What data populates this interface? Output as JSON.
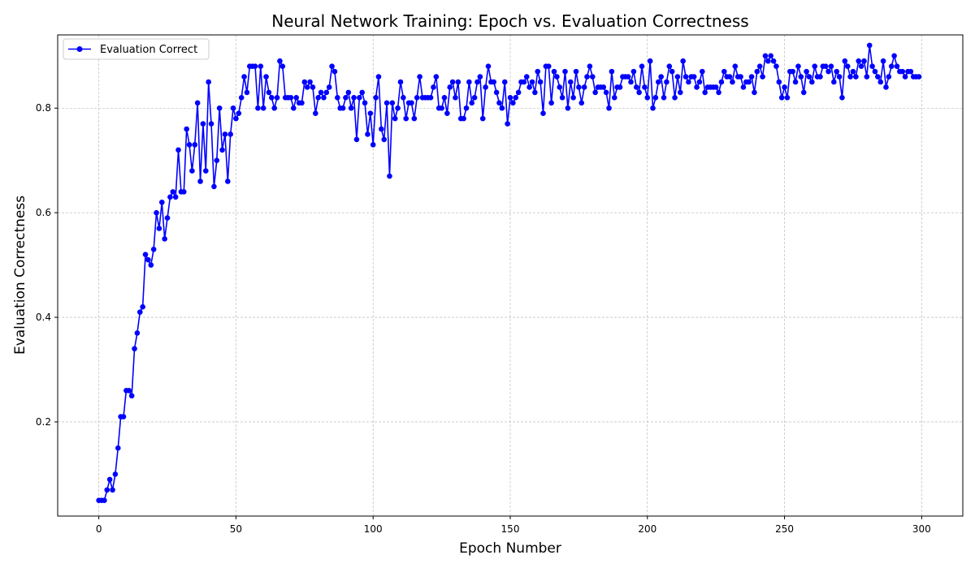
{
  "chart_data": {
    "type": "line",
    "title": "Neural Network Training: Epoch vs. Evaluation Correctness",
    "xlabel": "Epoch Number",
    "ylabel": "Evaluation Correctness",
    "xlim": [
      -15,
      315
    ],
    "ylim": [
      0.02,
      0.94
    ],
    "xticks": [
      0,
      50,
      100,
      150,
      200,
      250,
      300
    ],
    "yticks": [
      0.2,
      0.4,
      0.6,
      0.8
    ],
    "xtick_labels": [
      "0",
      "50",
      "100",
      "150",
      "200",
      "250",
      "300"
    ],
    "ytick_labels": [
      "0.2",
      "0.4",
      "0.6",
      "0.8"
    ],
    "grid": true,
    "legend_position": "top-left",
    "series": [
      {
        "name": "Evaluation Correct",
        "color": "#0000ff",
        "marker": "circle",
        "x_start": 0,
        "x_step": 1,
        "values": [
          0.05,
          0.05,
          0.05,
          0.07,
          0.09,
          0.07,
          0.1,
          0.15,
          0.21,
          0.21,
          0.26,
          0.26,
          0.25,
          0.34,
          0.37,
          0.41,
          0.42,
          0.52,
          0.51,
          0.5,
          0.53,
          0.6,
          0.57,
          0.62,
          0.55,
          0.59,
          0.63,
          0.64,
          0.63,
          0.72,
          0.64,
          0.64,
          0.76,
          0.73,
          0.68,
          0.73,
          0.81,
          0.66,
          0.77,
          0.68,
          0.85,
          0.77,
          0.65,
          0.7,
          0.8,
          0.72,
          0.75,
          0.66,
          0.75,
          0.8,
          0.78,
          0.79,
          0.82,
          0.86,
          0.83,
          0.88,
          0.88,
          0.88,
          0.8,
          0.88,
          0.8,
          0.86,
          0.83,
          0.82,
          0.8,
          0.82,
          0.89,
          0.88,
          0.82,
          0.82,
          0.82,
          0.8,
          0.82,
          0.81,
          0.81,
          0.85,
          0.84,
          0.85,
          0.84,
          0.79,
          0.82,
          0.83,
          0.82,
          0.83,
          0.84,
          0.88,
          0.87,
          0.82,
          0.8,
          0.8,
          0.82,
          0.83,
          0.8,
          0.82,
          0.74,
          0.82,
          0.83,
          0.81,
          0.75,
          0.79,
          0.73,
          0.82,
          0.86,
          0.76,
          0.74,
          0.81,
          0.67,
          0.81,
          0.78,
          0.8,
          0.85,
          0.82,
          0.78,
          0.81,
          0.81,
          0.78,
          0.82,
          0.86,
          0.82,
          0.82,
          0.82,
          0.82,
          0.84,
          0.86,
          0.8,
          0.8,
          0.82,
          0.79,
          0.84,
          0.85,
          0.82,
          0.85,
          0.78,
          0.78,
          0.8,
          0.85,
          0.81,
          0.82,
          0.85,
          0.86,
          0.78,
          0.84,
          0.88,
          0.85,
          0.85,
          0.83,
          0.81,
          0.8,
          0.85,
          0.77,
          0.82,
          0.81,
          0.82,
          0.83,
          0.85,
          0.85,
          0.86,
          0.84,
          0.85,
          0.83,
          0.87,
          0.85,
          0.79,
          0.88,
          0.88,
          0.81,
          0.87,
          0.86,
          0.84,
          0.82,
          0.87,
          0.8,
          0.85,
          0.82,
          0.87,
          0.84,
          0.81,
          0.84,
          0.86,
          0.88,
          0.86,
          0.83,
          0.84,
          0.84,
          0.84,
          0.83,
          0.8,
          0.87,
          0.82,
          0.84,
          0.84,
          0.86,
          0.86,
          0.86,
          0.85,
          0.87,
          0.84,
          0.83,
          0.88,
          0.84,
          0.82,
          0.89,
          0.8,
          0.82,
          0.85,
          0.86,
          0.82,
          0.85,
          0.88,
          0.87,
          0.82,
          0.86,
          0.83,
          0.89,
          0.86,
          0.85,
          0.86,
          0.86,
          0.84,
          0.85,
          0.87,
          0.83,
          0.84,
          0.84,
          0.84,
          0.84,
          0.83,
          0.85,
          0.87,
          0.86,
          0.86,
          0.85,
          0.88,
          0.86,
          0.86,
          0.84,
          0.85,
          0.85,
          0.86,
          0.83,
          0.87,
          0.88,
          0.86,
          0.9,
          0.89,
          0.9,
          0.89,
          0.88,
          0.85,
          0.82,
          0.84,
          0.82,
          0.87,
          0.87,
          0.85,
          0.88,
          0.86,
          0.83,
          0.87,
          0.86,
          0.85,
          0.88,
          0.86,
          0.86,
          0.88,
          0.88,
          0.87,
          0.88,
          0.85,
          0.87,
          0.86,
          0.82,
          0.89,
          0.88,
          0.86,
          0.87,
          0.86,
          0.89,
          0.88,
          0.89,
          0.86,
          0.92,
          0.88,
          0.87,
          0.86,
          0.85,
          0.89,
          0.84,
          0.86,
          0.88,
          0.9,
          0.88,
          0.87,
          0.87,
          0.86,
          0.87,
          0.87,
          0.86,
          0.86,
          0.86
        ]
      }
    ]
  }
}
